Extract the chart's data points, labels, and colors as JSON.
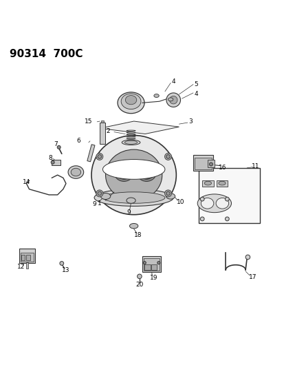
{
  "title": "90314  700C",
  "title_fontsize": 11,
  "title_fontweight": "bold",
  "bg_color": "#ffffff",
  "line_color": "#333333",
  "fig_width": 4.14,
  "fig_height": 5.33,
  "dpi": 100
}
